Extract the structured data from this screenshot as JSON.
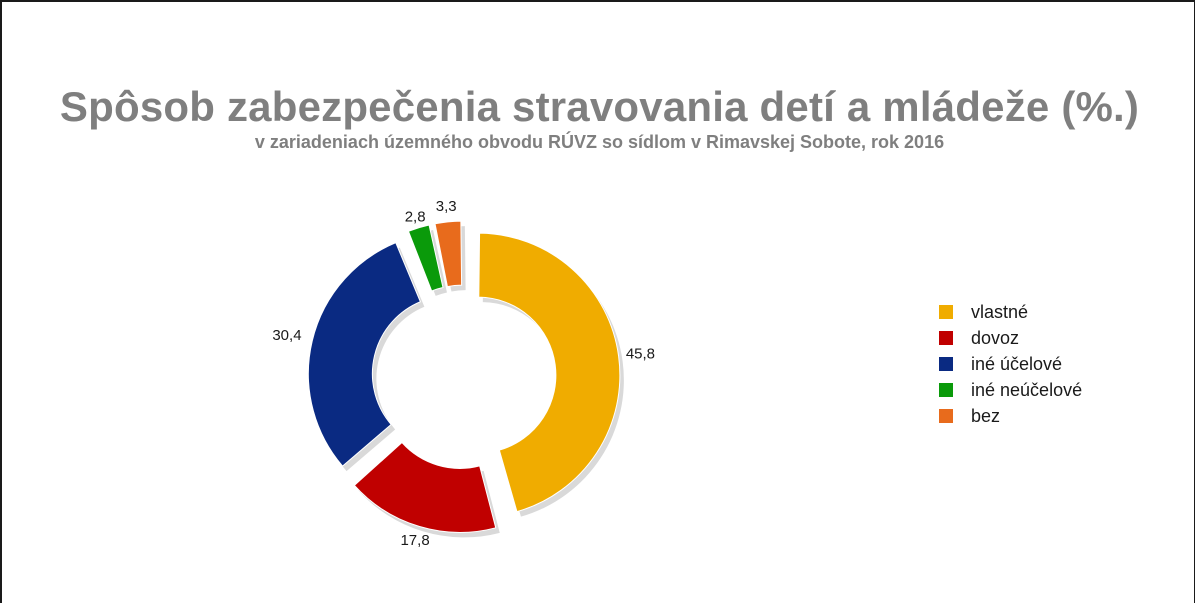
{
  "chart_data": {
    "type": "pie",
    "donut": true,
    "exploded": true,
    "title": "Spôsob zabezpečenia stravovania detí a mládeže (%.)",
    "subtitle": "v zariadeniach územného obvodu RÚVZ so sídlom v Rimavskej Sobote, rok 2016",
    "legend_position": "right",
    "slices": [
      {
        "name": "vlastné",
        "value": 45.8,
        "label": "45,8",
        "color": "#f0ac00"
      },
      {
        "name": "dovoz",
        "value": 17.8,
        "label": "17,8",
        "color": "#c00000"
      },
      {
        "name": "iné účelové",
        "value": 30.4,
        "label": "30,4",
        "color": "#0a2a82"
      },
      {
        "name": "iné neúčelové",
        "value": 2.8,
        "label": "2,8",
        "color": "#0a9a0a"
      },
      {
        "name": "bez",
        "value": 3.3,
        "label": "3,3",
        "color": "#e86b1c"
      }
    ]
  }
}
